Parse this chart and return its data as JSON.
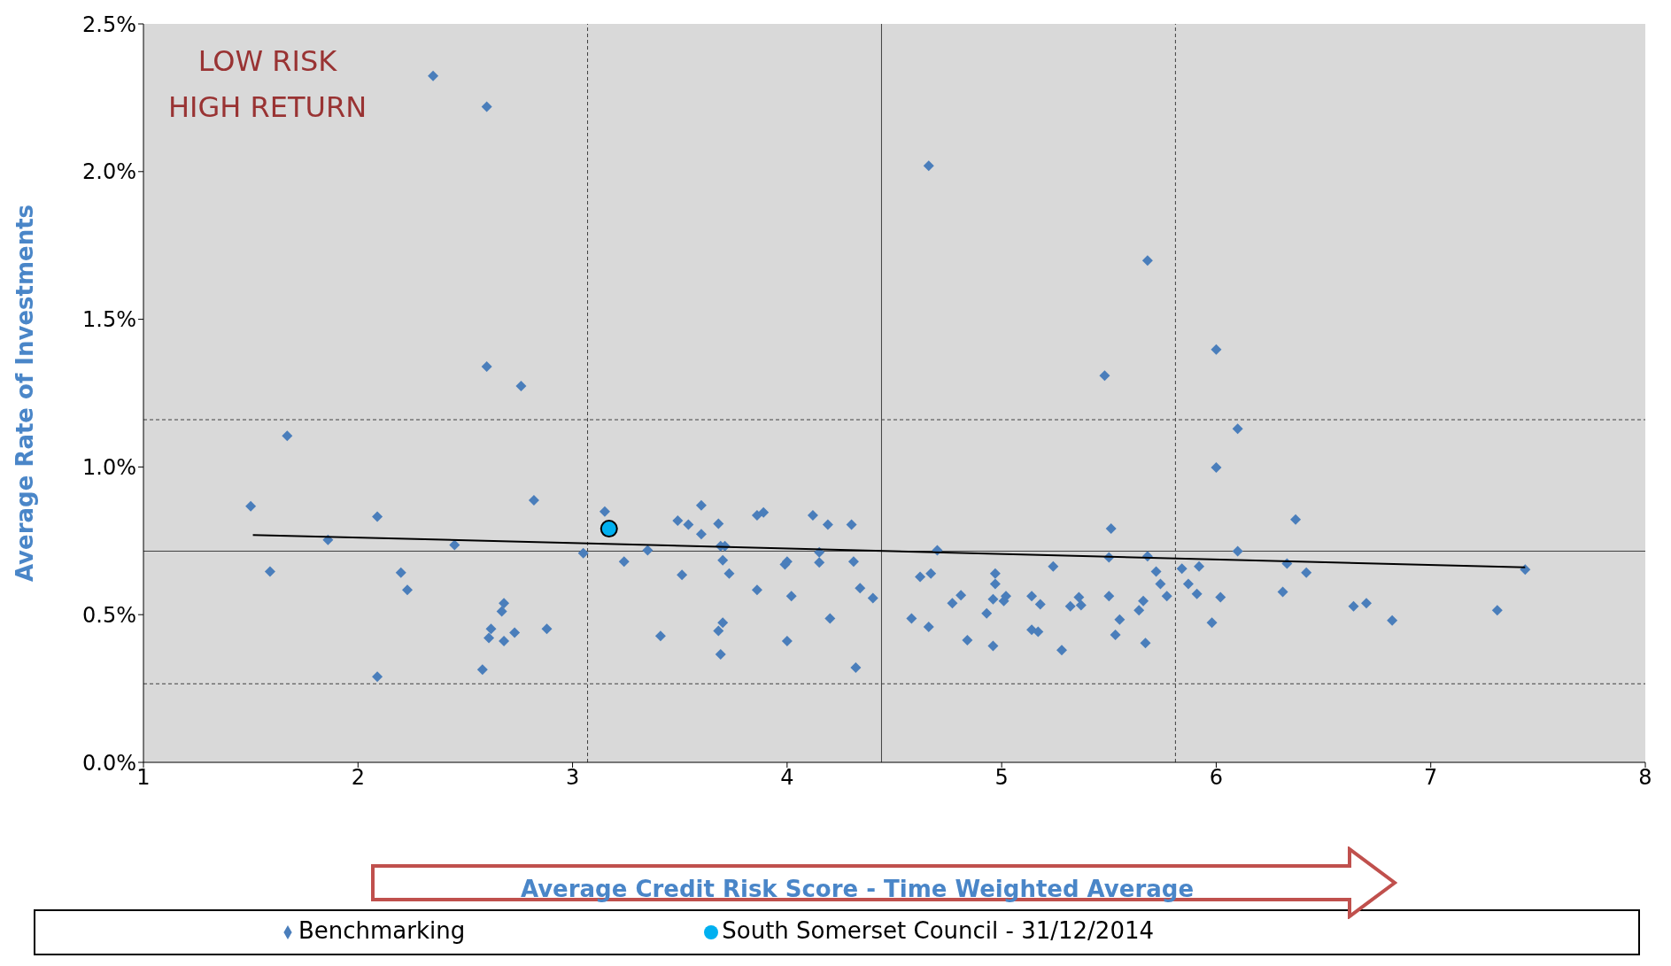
{
  "chart_data": {
    "type": "scatter",
    "xlabel": "Average Credit Risk Score - Time Weighted Average",
    "ylabel": "Average Rate of Investments",
    "annotations": [
      "LOW RISK\nHIGH RETURN"
    ],
    "xlim": [
      1,
      8
    ],
    "xticks": [
      1,
      2,
      3,
      4,
      5,
      6,
      7,
      8
    ],
    "ylim": [
      0,
      2.5
    ],
    "yticks": [
      {
        "value": 0,
        "label": "0.0%"
      },
      {
        "value": 0.5,
        "label": "0.5%"
      },
      {
        "value": 1,
        "label": "1.0%"
      },
      {
        "value": 1.5,
        "label": "1.5%"
      },
      {
        "value": 2,
        "label": "2.0%"
      },
      {
        "value": 2.5,
        "label": "2.5%"
      }
    ],
    "grid": false,
    "legend": "bottom",
    "ref_lines": [
      {
        "axis": "x",
        "value": 3.07,
        "color": "#404040",
        "line_style": "dashed"
      },
      {
        "axis": "x",
        "value": 4.44,
        "color": "#404040",
        "line_style": "solid"
      },
      {
        "axis": "x",
        "value": 5.81,
        "color": "#404040",
        "line_style": "dashed"
      },
      {
        "axis": "y",
        "value": 1.16,
        "color": "#404040",
        "line_style": "dashed"
      },
      {
        "axis": "y",
        "value": 0.715,
        "color": "#404040",
        "line_style": "solid"
      },
      {
        "axis": "y",
        "value": 0.266,
        "color": "#404040",
        "line_style": "dashed"
      }
    ],
    "series": [
      {
        "name": "Benchmarking",
        "color": "#4a7ebb",
        "marker": "diamond",
        "x": [
          1.5,
          1.59,
          1.67,
          1.86,
          2.09,
          2.09,
          2.2,
          2.23,
          2.35,
          2.45,
          2.6,
          2.6,
          2.58,
          2.61,
          2.62,
          2.67,
          2.68,
          2.68,
          2.73,
          2.76,
          2.82,
          2.88,
          3.05,
          3.15,
          3.24,
          3.35,
          3.41,
          3.49,
          3.51,
          3.54,
          3.6,
          3.6,
          3.68,
          3.69,
          3.71,
          3.7,
          3.73,
          3.68,
          3.7,
          3.69,
          3.86,
          3.89,
          3.86,
          3.99,
          4.0,
          4.02,
          4.0,
          4.12,
          4.19,
          4.15,
          4.15,
          4.2,
          4.3,
          4.31,
          4.34,
          4.4,
          4.32,
          4.58,
          4.62,
          4.67,
          4.7,
          4.66,
          4.66,
          4.77,
          4.81,
          4.84,
          4.93,
          4.97,
          4.97,
          4.96,
          4.96,
          5.01,
          5.02,
          5.14,
          5.14,
          5.17,
          5.18,
          5.24,
          5.28,
          5.32,
          5.36,
          5.37,
          5.48,
          5.5,
          5.51,
          5.5,
          5.53,
          5.55,
          5.64,
          5.66,
          5.67,
          5.68,
          5.68,
          5.72,
          5.74,
          5.77,
          5.84,
          5.87,
          5.92,
          5.91,
          5.98,
          6.0,
          6.0,
          6.02,
          6.1,
          6.1,
          6.31,
          6.33,
          6.37,
          6.42,
          6.64,
          6.7,
          6.82,
          7.31,
          7.44
        ],
        "values": [
          0.867,
          0.646,
          1.105,
          0.753,
          0.832,
          0.29,
          0.642,
          0.584,
          2.324,
          0.736,
          2.22,
          1.34,
          0.314,
          0.421,
          0.452,
          0.511,
          0.539,
          0.411,
          0.439,
          1.274,
          0.887,
          0.452,
          0.708,
          0.849,
          0.68,
          0.718,
          0.428,
          0.818,
          0.635,
          0.805,
          0.87,
          0.773,
          0.808,
          0.732,
          0.732,
          0.684,
          0.639,
          0.445,
          0.473,
          0.366,
          0.836,
          0.846,
          0.584,
          0.67,
          0.68,
          0.563,
          0.411,
          0.836,
          0.805,
          0.711,
          0.677,
          0.487,
          0.805,
          0.68,
          0.59,
          0.556,
          0.321,
          0.487,
          0.628,
          0.639,
          0.718,
          2.02,
          0.459,
          0.539,
          0.566,
          0.414,
          0.504,
          0.604,
          0.639,
          0.552,
          0.394,
          0.546,
          0.563,
          0.563,
          0.449,
          0.442,
          0.535,
          0.663,
          0.38,
          0.528,
          0.559,
          0.532,
          1.309,
          0.694,
          0.791,
          0.563,
          0.432,
          0.483,
          0.515,
          0.546,
          0.404,
          1.699,
          0.698,
          0.646,
          0.604,
          0.563,
          0.656,
          0.604,
          0.663,
          0.57,
          0.473,
          1.398,
          0.998,
          0.559,
          1.129,
          0.715,
          0.577,
          0.673,
          0.822,
          0.642,
          0.528,
          0.539,
          0.48,
          0.515,
          0.653
        ]
      },
      {
        "name": "South Somerset Council - 31/12/2014",
        "color": "#00b0f0",
        "marker": "circle",
        "x": [
          3.17
        ],
        "values": [
          0.791
        ]
      },
      {
        "type": "line",
        "color": "#000000",
        "marker": "none",
        "x": [
          1.51,
          7.44
        ],
        "values": [
          0.77,
          0.66
        ]
      }
    ]
  }
}
